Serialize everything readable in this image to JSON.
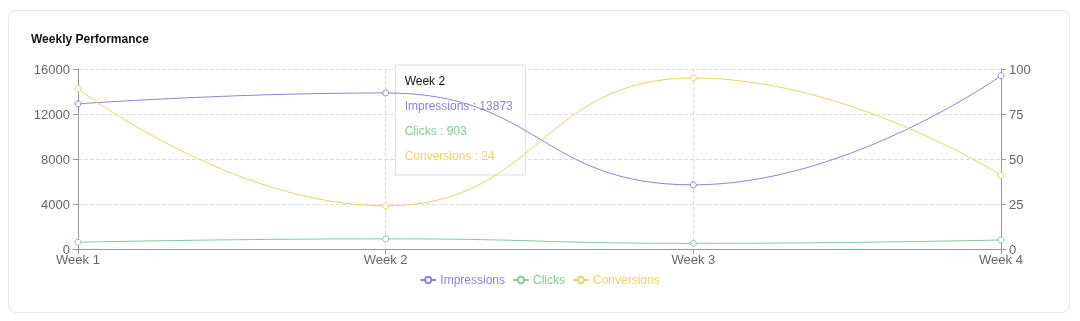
{
  "chart_data": {
    "type": "line",
    "title": "Weekly Performance",
    "categories": [
      "Week 1",
      "Week 2",
      "Week 3",
      "Week 4"
    ],
    "series": [
      {
        "name": "Impressions",
        "color": "#8884d8",
        "values": [
          12900,
          13873,
          5700,
          15400
        ]
      },
      {
        "name": "Clicks",
        "color": "#82ca9d",
        "values": [
          600,
          903,
          500,
          800
        ]
      },
      {
        "name": "Conversions",
        "color": "#e6d36a",
        "values": [
          89,
          24,
          95,
          41
        ],
        "axis": "y2"
      }
    ],
    "ylim": [
      0,
      16000
    ],
    "yticks": [
      0,
      4000,
      8000,
      12000,
      16000
    ],
    "y2lim": [
      0,
      100
    ],
    "y2ticks": [
      0,
      25,
      50,
      75,
      100
    ],
    "annotations": [
      "Week 2",
      "Impressions : 13873",
      "Clicks : 903",
      "Conversions : 24"
    ],
    "grid": true,
    "legend": "bottom",
    "marker": "circle",
    "line_style": "solid"
  }
}
